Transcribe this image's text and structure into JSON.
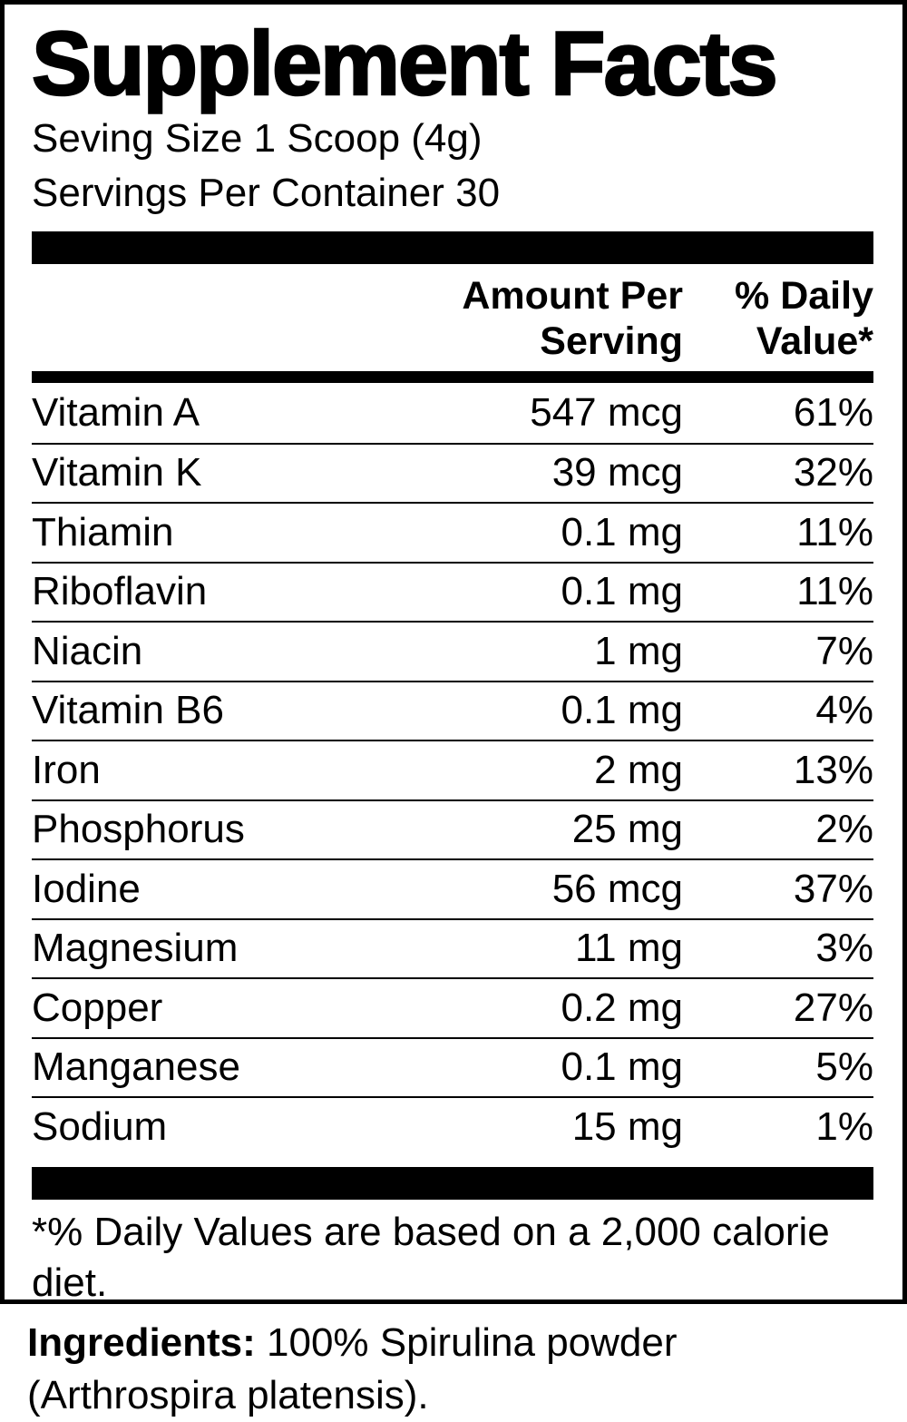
{
  "label": {
    "title": "Supplement Facts",
    "serving_size_line": "Seving Size 1 Scoop (4g)",
    "servings_per_container_line": "Servings Per Container 30",
    "header": {
      "amount_line1": "Amount Per",
      "amount_line2": "Serving",
      "dv_line1": "% Daily",
      "dv_line2": "Value*"
    },
    "nutrients": [
      {
        "name": "Vitamin A",
        "amount": "547 mcg",
        "dv": "61%"
      },
      {
        "name": "Vitamin K",
        "amount": "39 mcg",
        "dv": "32%"
      },
      {
        "name": "Thiamin",
        "amount": "0.1 mg",
        "dv": "11%"
      },
      {
        "name": "Riboflavin",
        "amount": "0.1 mg",
        "dv": "11%"
      },
      {
        "name": "Niacin",
        "amount": "1 mg",
        "dv": "7%"
      },
      {
        "name": "Vitamin B6",
        "amount": "0.1 mg",
        "dv": "4%"
      },
      {
        "name": "Iron",
        "amount": "2 mg",
        "dv": "13%"
      },
      {
        "name": "Phosphorus",
        "amount": "25 mg",
        "dv": "2%"
      },
      {
        "name": "Iodine",
        "amount": "56 mcg",
        "dv": "37%"
      },
      {
        "name": "Magnesium",
        "amount": "11 mg",
        "dv": "3%"
      },
      {
        "name": "Copper",
        "amount": "0.2 mg",
        "dv": "27%"
      },
      {
        "name": "Manganese",
        "amount": "0.1 mg",
        "dv": "5%"
      },
      {
        "name": "Sodium",
        "amount": "15 mg",
        "dv": "1%"
      }
    ],
    "footnote": "*% Daily Values are based on a 2,000 calorie diet.",
    "ingredients_label": "Ingredients:",
    "ingredients_text": " 100% Spirulina powder (Arthrospira platensis)."
  },
  "colors": {
    "ink": "#000000",
    "background": "#ffffff"
  }
}
